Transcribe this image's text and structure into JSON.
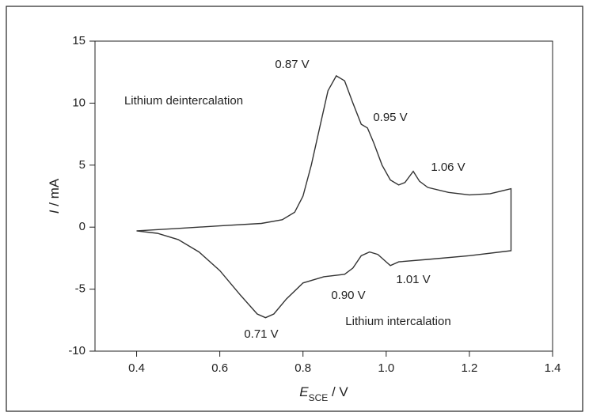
{
  "chart_data": {
    "type": "line",
    "y_label": {
      "symbol": "I",
      "unit": " / mA"
    },
    "x_label": {
      "symbol": "E",
      "subscript": "SCE",
      "unit": " / V"
    },
    "xlim": [
      0.3,
      1.4
    ],
    "xticks": [
      0.4,
      0.6,
      0.8,
      {
        "value": 1,
        "label": "1.0"
      },
      1.2,
      1.4
    ],
    "ylim": [
      -10,
      15
    ],
    "yticks": [
      -10,
      -5,
      0,
      5,
      10,
      15
    ],
    "grid": false,
    "series": [
      {
        "color": "#333333",
        "x": [
          0.4,
          0.5,
          0.6,
          0.7,
          0.75,
          0.78,
          0.8,
          0.82,
          0.84,
          0.86,
          0.88,
          0.9,
          0.92,
          0.94,
          0.955,
          0.97,
          0.99,
          1.01,
          1.03,
          1.045,
          1.065,
          1.08,
          1.1,
          1.15,
          1.2,
          1.25,
          1.3,
          1.3,
          1.2,
          1.1,
          1.03,
          1.01,
          1.0,
          0.98,
          0.96,
          0.94,
          0.92,
          0.9,
          0.85,
          0.8,
          0.76,
          0.73,
          0.71,
          0.69,
          0.65,
          0.6,
          0.55,
          0.5,
          0.45,
          0.4
        ],
        "values": [
          -0.3,
          -0.1,
          0.1,
          0.3,
          0.6,
          1.2,
          2.5,
          5,
          8,
          11,
          12.2,
          11.8,
          10,
          8.3,
          8.0,
          6.8,
          5,
          3.8,
          3.4,
          3.6,
          4.5,
          3.7,
          3.2,
          2.8,
          2.6,
          2.7,
          3.1,
          -1.9,
          -2.3,
          -2.6,
          -2.8,
          -3.1,
          -2.8,
          -2.2,
          -2.0,
          -2.3,
          -3.3,
          -3.8,
          -4.0,
          -4.5,
          -5.8,
          -7.0,
          -7.3,
          -7.0,
          -5.5,
          -3.5,
          -2.0,
          -1.0,
          -0.5,
          -0.3
        ]
      }
    ],
    "annotations": [
      "0.87 V",
      "0.95 V",
      "1.06 V",
      "Lithium deintercalation",
      "0.71 V",
      "0.90 V",
      "1.01 V",
      "Lithium intercalation"
    ]
  }
}
